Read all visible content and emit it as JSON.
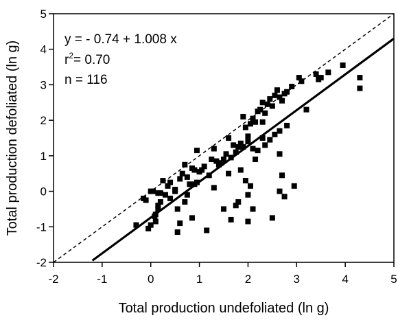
{
  "chart_data": {
    "type": "scatter",
    "xlabel": "Total production undefoliated (ln g)",
    "ylabel": "Total production defoliated (ln g)",
    "xlim": [
      -2,
      5
    ],
    "ylim": [
      -2,
      5
    ],
    "xticks": [
      "-2",
      "-1",
      "0",
      "1",
      "2",
      "3",
      "4",
      "5"
    ],
    "yticks": [
      "-2",
      "-1",
      "0",
      "1",
      "2",
      "3",
      "4",
      "5"
    ],
    "grid": false,
    "annotations": {
      "equation": "y = - 0.74 + 1.008 x",
      "r2_prefix": "r",
      "r2_sup": "2",
      "r2_suffix": "= 0.70",
      "n": "n = 116"
    },
    "fit_line": {
      "intercept": -0.74,
      "slope": 1.008,
      "x_range": [
        -1.2,
        5.0
      ]
    },
    "reference_line": {
      "intercept": 0,
      "slope": 1,
      "style": "dashed",
      "x_range": [
        -2,
        5
      ]
    },
    "series": [
      {
        "marker": "square",
        "x": [
          -0.3,
          -0.15,
          0.0,
          0.08,
          0.1,
          0.15,
          0.35,
          0.2,
          0.5,
          0.55,
          0.65,
          0.7,
          0.75,
          0.85,
          0.95,
          1.05,
          1.2,
          1.3,
          1.45,
          1.5,
          1.6,
          1.7,
          1.8,
          1.85,
          1.9,
          1.95,
          2.0,
          2.05,
          2.1,
          2.15,
          2.2,
          2.25,
          2.3,
          2.35,
          2.4,
          2.45,
          2.5,
          2.55,
          2.6,
          2.65,
          2.7,
          2.75,
          2.8,
          2.9,
          3.05,
          3.1,
          3.2,
          3.4,
          3.45,
          3.5,
          3.65,
          3.95,
          4.3,
          4.3,
          -0.05,
          0.0,
          0.1,
          0.15,
          0.3,
          0.4,
          0.55,
          0.6,
          0.7,
          0.75,
          0.85,
          0.95,
          1.15,
          1.3,
          1.5,
          1.65,
          1.75,
          1.8,
          1.95,
          2.0,
          2.05,
          2.1,
          2.5,
          2.65,
          2.7,
          2.75,
          2.95,
          2.65,
          0.2,
          0.25,
          0.4,
          0.5,
          0.6,
          0.8,
          0.9,
          1.0,
          1.1,
          1.25,
          1.35,
          1.4,
          1.55,
          1.65,
          1.75,
          1.9,
          2.0,
          2.1,
          2.2,
          2.3,
          2.35,
          2.45,
          2.55,
          2.65,
          2.8,
          0.9,
          1.6,
          1.85,
          2.0,
          2.15,
          2.3,
          0.15,
          0.05,
          -0.1
        ],
        "y": [
          -0.95,
          -0.2,
          0.0,
          -0.7,
          -0.85,
          -0.05,
          0.15,
          -0.3,
          0.05,
          -1.15,
          0.5,
          0.75,
          0.4,
          0.65,
          1.15,
          0.6,
          0.45,
          1.2,
          0.8,
          0.9,
          1.5,
          1.3,
          1.25,
          1.35,
          2.1,
          1.8,
          1.55,
          1.9,
          2.05,
          1.95,
          2.25,
          2.3,
          2.5,
          2.2,
          2.45,
          2.6,
          2.4,
          2.7,
          2.85,
          2.65,
          2.55,
          2.75,
          2.8,
          2.95,
          3.2,
          3.1,
          2.3,
          3.3,
          3.15,
          3.2,
          3.35,
          3.55,
          3.2,
          2.9,
          -1.05,
          -0.95,
          -0.65,
          -0.4,
          -0.1,
          -0.2,
          -0.5,
          -0.9,
          -0.3,
          -0.1,
          -0.75,
          0.25,
          -1.1,
          0.1,
          -0.5,
          -0.8,
          -0.4,
          -0.3,
          0.3,
          -0.85,
          0.15,
          -0.5,
          -0.75,
          1.05,
          0.45,
          -0.15,
          0.15,
          0.0,
          -0.05,
          0.3,
          0.25,
          0.0,
          0.35,
          0.2,
          0.6,
          0.55,
          0.7,
          0.9,
          0.85,
          0.75,
          1.05,
          0.95,
          1.1,
          1.25,
          1.4,
          1.2,
          1.15,
          1.5,
          1.3,
          1.45,
          1.6,
          1.7,
          1.85,
          0.2,
          0.5,
          0.6,
          -0.1,
          0.9,
          1.95,
          -0.5,
          0.0,
          -0.25
        ]
      }
    ]
  }
}
